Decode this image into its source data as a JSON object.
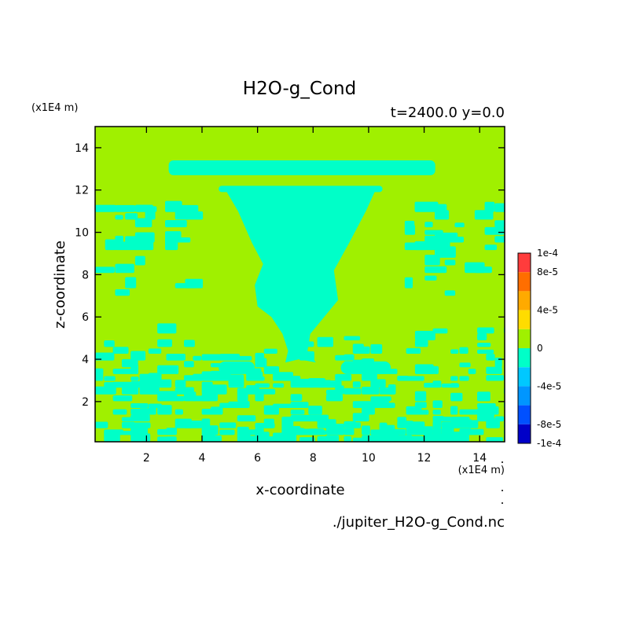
{
  "chart_data": {
    "type": "heatmap",
    "title": "H2O-g_Cond",
    "subtitle": "t=2400.0 y=0.0",
    "xlabel": "x-coordinate",
    "ylabel": "z-coordinate",
    "x_unit": "(x1E4 m)",
    "y_unit": "(x1E4 m)",
    "source_file": "./jupiter_H2O-g_Cond.nc",
    "xlim": [
      0.15,
      14.9
    ],
    "ylim": [
      0.1,
      15.0
    ],
    "x_ticks": [
      "2",
      "4",
      "6",
      "8",
      "10",
      "12",
      "14"
    ],
    "y_ticks": [
      "2",
      "4",
      "6",
      "8",
      "10",
      "12",
      "14"
    ],
    "x_tick_values": [
      2,
      4,
      6,
      8,
      10,
      12,
      14
    ],
    "y_tick_values": [
      2,
      4,
      6,
      8,
      10,
      12,
      14
    ],
    "background_value_color": "#a0f000",
    "negative_value_color": "#00ffc8",
    "colorbar": {
      "labels": [
        "1e-4",
        "8e-5",
        "4e-5",
        "0",
        "-4e-5",
        "-8e-5",
        "-1e-4"
      ],
      "label_values": [
        0.0001,
        8e-05,
        4e-05,
        0,
        -4e-05,
        -8e-05,
        -0.0001
      ],
      "range": [
        -0.0001,
        0.0001
      ],
      "bands": [
        {
          "from": 8e-05,
          "to": 0.0001,
          "color": "#ff3c3c"
        },
        {
          "from": 6e-05,
          "to": 8e-05,
          "color": "#ff6e00"
        },
        {
          "from": 4e-05,
          "to": 6e-05,
          "color": "#ffaa00"
        },
        {
          "from": 2e-05,
          "to": 4e-05,
          "color": "#ffdc00"
        },
        {
          "from": 0,
          "to": 2e-05,
          "color": "#a0f000"
        },
        {
          "from": -2e-05,
          "to": 0,
          "color": "#00ffc8"
        },
        {
          "from": -4e-05,
          "to": -2e-05,
          "color": "#00c8ff"
        },
        {
          "from": -6e-05,
          "to": -4e-05,
          "color": "#0096ff"
        },
        {
          "from": -8e-05,
          "to": -6e-05,
          "color": "#0050ff"
        },
        {
          "from": -0.0001,
          "to": -8e-05,
          "color": "#0000c8"
        }
      ]
    },
    "regions": {
      "anvil_top_band": {
        "x": [
          2.8,
          12.4
        ],
        "z": [
          12.7,
          13.4
        ]
      },
      "anvil_lower_band": {
        "x": [
          4.6,
          10.5
        ],
        "z": [
          11.9,
          12.2
        ]
      },
      "funnel_outline": [
        [
          4.85,
          12.0
        ],
        [
          10.25,
          12.0
        ],
        [
          9.9,
          11.0
        ],
        [
          9.3,
          9.5
        ],
        [
          8.75,
          8.2
        ],
        [
          8.9,
          6.8
        ],
        [
          8.4,
          6.0
        ],
        [
          7.9,
          5.2
        ],
        [
          7.8,
          4.4
        ],
        [
          8.1,
          3.85
        ],
        [
          7.5,
          4.0
        ],
        [
          7.0,
          3.85
        ],
        [
          7.1,
          4.4
        ],
        [
          6.9,
          5.2
        ],
        [
          6.5,
          6.0
        ],
        [
          6.0,
          6.5
        ],
        [
          5.9,
          7.5
        ],
        [
          6.2,
          8.5
        ],
        [
          5.8,
          9.5
        ],
        [
          5.3,
          11.0
        ]
      ],
      "low_band_left": {
        "x": [
          4.6,
          5.9
        ],
        "z": [
          3.3,
          3.9
        ]
      },
      "low_band_right": {
        "x": [
          9.0,
          10.8
        ],
        "z": [
          3.3,
          3.9
        ]
      },
      "scattered_cells_bottom": {
        "x": [
          0.15,
          14.9
        ],
        "z": [
          0.1,
          5.5
        ]
      },
      "scattered_cells_left": {
        "x": [
          0.15,
          3.6
        ],
        "z": [
          7.0,
          11.2
        ]
      },
      "scattered_cells_right": {
        "x": [
          11.3,
          14.9
        ],
        "z": [
          7.0,
          11.2
        ]
      }
    }
  }
}
